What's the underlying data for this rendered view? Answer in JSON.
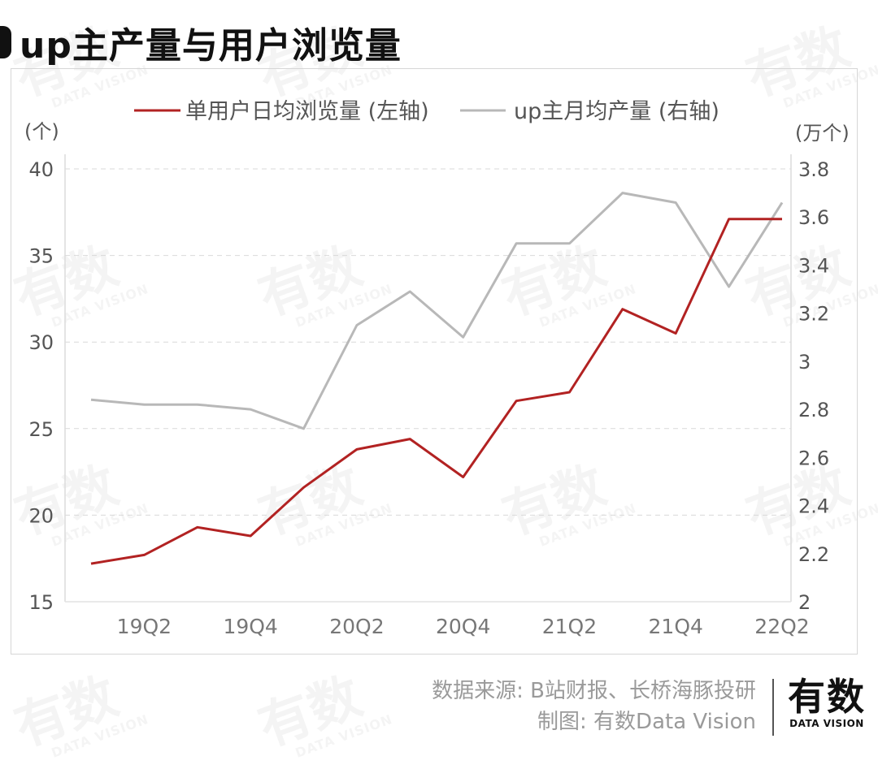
{
  "title": "up主产量与用户浏览量",
  "legend": {
    "series_left": "单用户日均浏览量 (左轴)",
    "series_right": "up主月均产量 (右轴)"
  },
  "axes": {
    "left_unit": "(个)",
    "right_unit": "(万个)",
    "left_ticks": [
      "40",
      "35",
      "30",
      "25",
      "20",
      "15"
    ],
    "right_ticks": [
      "3.8",
      "3.6",
      "3.4",
      "3.2",
      "3",
      "2.8",
      "2.6",
      "2.4",
      "2.2",
      "2"
    ],
    "x_ticks": [
      "19Q2",
      "19Q4",
      "20Q2",
      "20Q4",
      "21Q2",
      "21Q4",
      "22Q2"
    ]
  },
  "footer": {
    "source": "数据来源: B站财报、长桥海豚投研",
    "credit": "制图: 有数Data Vision",
    "logo_cn": "有数",
    "logo_en": "DATA VISION"
  },
  "watermark": {
    "cn": "有数",
    "en": "DATA VISION"
  },
  "colors": {
    "left_series": "#b22222",
    "right_series": "#b8b8b8",
    "grid": "#d9d9d9",
    "axis_text": "#555555"
  },
  "chart_data": {
    "type": "line",
    "title": "up主产量与用户浏览量",
    "x": [
      "19Q1",
      "19Q2",
      "19Q3",
      "19Q4",
      "20Q1",
      "20Q2",
      "20Q3",
      "20Q4",
      "21Q1",
      "21Q2",
      "21Q3",
      "21Q4",
      "22Q1",
      "22Q2"
    ],
    "series": [
      {
        "name": "单用户日均浏览量 (左轴)",
        "axis": "left",
        "unit": "个",
        "color": "#b22222",
        "values": [
          17.2,
          17.7,
          19.3,
          18.8,
          21.6,
          23.8,
          24.4,
          22.2,
          26.6,
          27.1,
          31.9,
          30.5,
          37.1,
          37.1
        ]
      },
      {
        "name": "up主月均产量 (右轴)",
        "axis": "right",
        "unit": "万个",
        "color": "#b8b8b8",
        "values": [
          2.84,
          2.82,
          2.82,
          2.8,
          2.72,
          3.15,
          3.29,
          3.1,
          3.49,
          3.49,
          3.7,
          3.66,
          3.31,
          3.66
        ]
      }
    ],
    "ylim_left": [
      15,
      40
    ],
    "ylim_right": [
      2,
      3.8
    ],
    "ylabel_left": "(个)",
    "ylabel_right": "(万个)",
    "grid": "horizontal dashed",
    "legend_position": "top"
  }
}
